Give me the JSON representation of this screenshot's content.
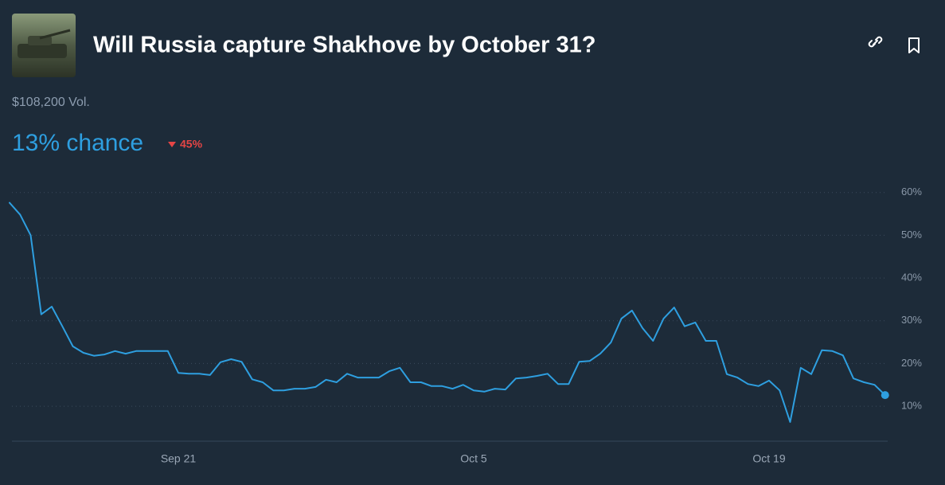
{
  "header": {
    "title": "Will Russia capture Shakhove by October 31?",
    "volume": "$108,200 Vol.",
    "chance": "13% chance",
    "change": "45%"
  },
  "chart_data": {
    "type": "line",
    "color": "#2e9fe0",
    "grid": true,
    "ylim": [
      2,
      62
    ],
    "yticks": [
      {
        "value": 10,
        "label": "10%"
      },
      {
        "value": 20,
        "label": "20%"
      },
      {
        "value": 30,
        "label": "30%"
      },
      {
        "value": 40,
        "label": "40%"
      },
      {
        "value": 50,
        "label": "50%"
      },
      {
        "value": 60,
        "label": "60%"
      }
    ],
    "categories": [
      null,
      null,
      null,
      null,
      null,
      null,
      null,
      null,
      null,
      null,
      null,
      null,
      null,
      null,
      null,
      null,
      "Sep 21",
      null,
      null,
      null,
      null,
      null,
      null,
      null,
      null,
      null,
      null,
      null,
      null,
      null,
      null,
      null,
      null,
      null,
      null,
      null,
      null,
      null,
      null,
      null,
      null,
      null,
      null,
      null,
      "Oct 5",
      null,
      null,
      null,
      null,
      null,
      null,
      null,
      null,
      null,
      null,
      null,
      null,
      null,
      null,
      null,
      null,
      null,
      null,
      null,
      null,
      null,
      null,
      null,
      null,
      null,
      null,
      null,
      "Oct 19",
      null,
      null,
      null,
      null,
      null,
      null,
      null,
      null,
      null,
      null,
      null
    ],
    "values": [
      57.6,
      54.8,
      50,
      31.5,
      33.3,
      28.7,
      24,
      22.5,
      21.8,
      22.1,
      22.9,
      22.3,
      22.9,
      22.9,
      22.9,
      22.9,
      17.8,
      17.6,
      17.6,
      17.3,
      20.3,
      21,
      20.4,
      16.3,
      15.6,
      13.7,
      13.7,
      14.1,
      14.1,
      14.5,
      16.2,
      15.6,
      17.6,
      16.7,
      16.7,
      16.7,
      18.2,
      19,
      15.6,
      15.6,
      14.7,
      14.7,
      14.1,
      15,
      13.7,
      13.4,
      14.1,
      13.9,
      16.5,
      16.7,
      17.1,
      17.6,
      15.2,
      15.2,
      20.4,
      20.6,
      22.3,
      24.9,
      30.5,
      32.4,
      28.3,
      25.3,
      30.5,
      33.1,
      28.7,
      29.6,
      25.3,
      25.3,
      17.5,
      16.7,
      15.2,
      14.7,
      16,
      13.7,
      6.3,
      19,
      17.5,
      23.1,
      22.9,
      21.9,
      16.5,
      15.6,
      15,
      12.6
    ]
  }
}
